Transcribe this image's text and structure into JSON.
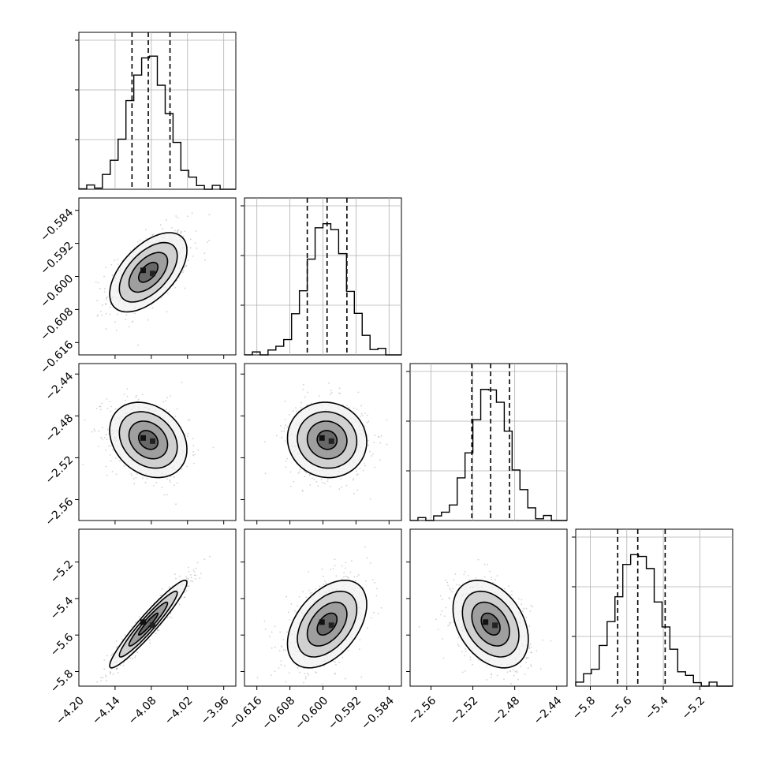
{
  "figure": {
    "type": "corner-plot",
    "parameters": 4
  },
  "chart_data": {
    "type": "heatmap",
    "grid": true,
    "parameters": [
      {
        "range": [
          -4.2,
          -3.94
        ],
        "ticks": [
          -4.2,
          -4.14,
          -4.08,
          -4.02,
          -3.96
        ],
        "tick_labels": [
          "−4.20",
          "−4.14",
          "−4.08",
          "−4.02",
          "−3.96"
        ],
        "mean": -4.085,
        "sigma": 0.032,
        "quantiles": [
          -4.112,
          -4.085,
          -4.049
        ]
      },
      {
        "range": [
          -0.619,
          -0.581
        ],
        "ticks": [
          -0.616,
          -0.608,
          -0.6,
          -0.592,
          -0.584
        ],
        "tick_labels": [
          "−0.616",
          "−0.608",
          "−0.600",
          "−0.592",
          "−0.584"
        ],
        "mean": -0.599,
        "sigma": 0.0048,
        "quantiles": [
          -0.6038,
          -0.599,
          -0.5942
        ]
      },
      {
        "range": [
          -2.58,
          -2.43
        ],
        "ticks": [
          -2.56,
          -2.52,
          -2.48,
          -2.44
        ],
        "tick_labels": [
          "−2.56",
          "−2.52",
          "−2.48",
          "−2.44"
        ],
        "mean": -2.503,
        "sigma": 0.018,
        "quantiles": [
          -2.521,
          -2.503,
          -2.485
        ]
      },
      {
        "range": [
          -5.88,
          -5.02
        ],
        "ticks": [
          -5.8,
          -5.6,
          -5.4,
          -5.2
        ],
        "tick_labels": [
          "−5.8",
          "−5.6",
          "−5.4",
          "−5.2"
        ],
        "mean": -5.54,
        "sigma": 0.12,
        "quantiles": [
          -5.65,
          -5.54,
          -5.39
        ]
      }
    ],
    "pairs": [
      {
        "x": 0,
        "y": 1,
        "correlation": 0.55
      },
      {
        "x": 0,
        "y": 2,
        "correlation": -0.25
      },
      {
        "x": 1,
        "y": 2,
        "correlation": -0.05
      },
      {
        "x": 0,
        "y": 3,
        "correlation": 0.95
      },
      {
        "x": 1,
        "y": 3,
        "correlation": 0.45
      },
      {
        "x": 2,
        "y": 3,
        "correlation": -0.35
      }
    ],
    "contour_levels_sigma": [
      0.5,
      1.0,
      1.5,
      2.0
    ],
    "histogram_bins": 20
  },
  "colors": {
    "axes": "#000000",
    "grid": "#b0b0b0",
    "points": "#7f7f7f",
    "hist": "#000000"
  }
}
